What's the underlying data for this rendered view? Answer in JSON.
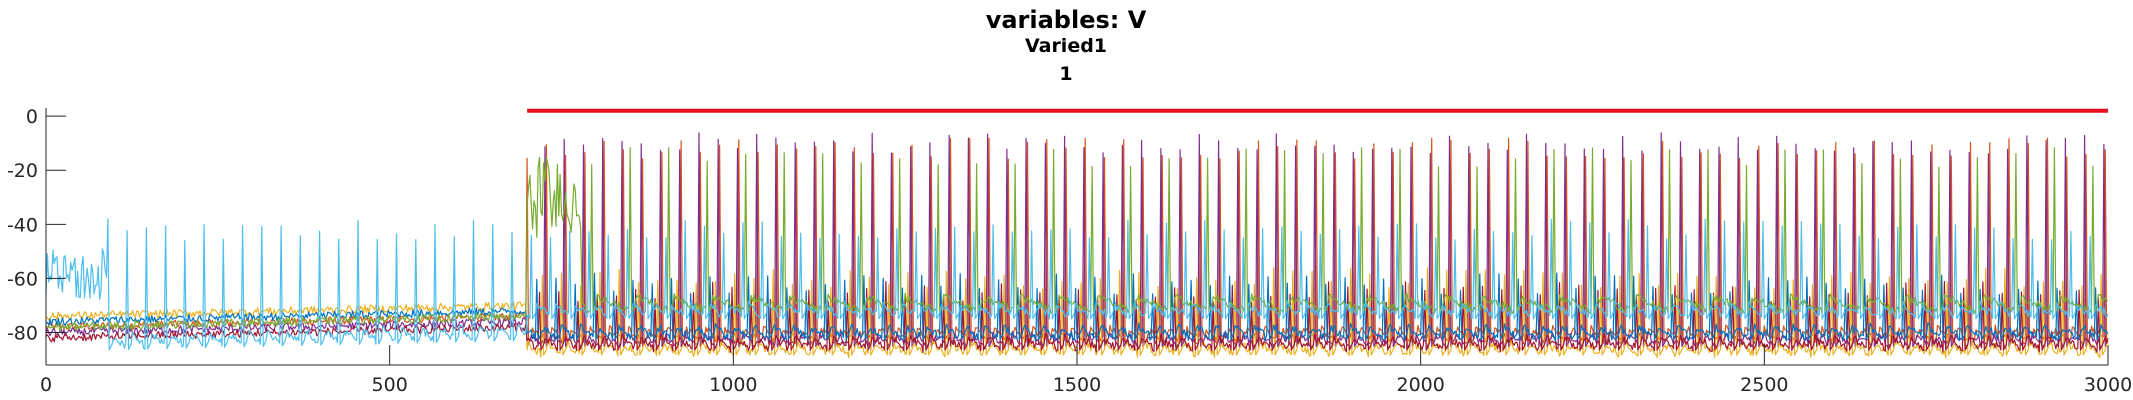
{
  "chart_data": {
    "type": "line",
    "title": "variables: V",
    "subtitle": "Varied1",
    "subtitle2": "1",
    "xlabel": "",
    "ylabel": "",
    "xlim": [
      0,
      3000
    ],
    "ylim": [
      -92,
      3
    ],
    "xticks": [
      0,
      500,
      1000,
      1500,
      2000,
      2500,
      3000
    ],
    "yticks": [
      0,
      -20,
      -40,
      -60,
      -80
    ],
    "grid": false,
    "legend": "none",
    "annotations": [
      {
        "kind": "horizontal-bar",
        "x_start": 700,
        "x_end": 3000,
        "y": 2,
        "color": "#e8101c"
      }
    ],
    "series": [
      {
        "color": "#d95319",
        "baseline_early": -78,
        "baseline_late": -81,
        "spike_peak": -12,
        "spike_start": 700,
        "spike_period": 28
      },
      {
        "color": "#7e2f8e",
        "baseline_early": -80,
        "baseline_late": -83,
        "spike_peak": -10,
        "spike_start": 700,
        "spike_period": 28
      },
      {
        "color": "#edb120",
        "baseline_early": -74,
        "baseline_late": -86,
        "spike_peak": -60,
        "spike_start": 700,
        "spike_period": 28
      },
      {
        "color": "#a2142f",
        "baseline_early": -82,
        "baseline_late": -84,
        "spike_peak": -65,
        "spike_start": 700,
        "spike_period": 28
      },
      {
        "color": "#0072bd",
        "baseline_early": -76,
        "baseline_late": -80,
        "spike_peak": -62,
        "spike_start": 700,
        "spike_period": 28
      },
      {
        "color": "#77ac30",
        "baseline_early": -78,
        "baseline_late": -70,
        "spike_peak": -15,
        "spike_start": 700,
        "spike_period": 56
      },
      {
        "color": "#4dbeee",
        "baseline_early": -84,
        "baseline_late": -72,
        "spike_peak": -42,
        "spike_start": 0,
        "spike_period": 28
      }
    ]
  }
}
